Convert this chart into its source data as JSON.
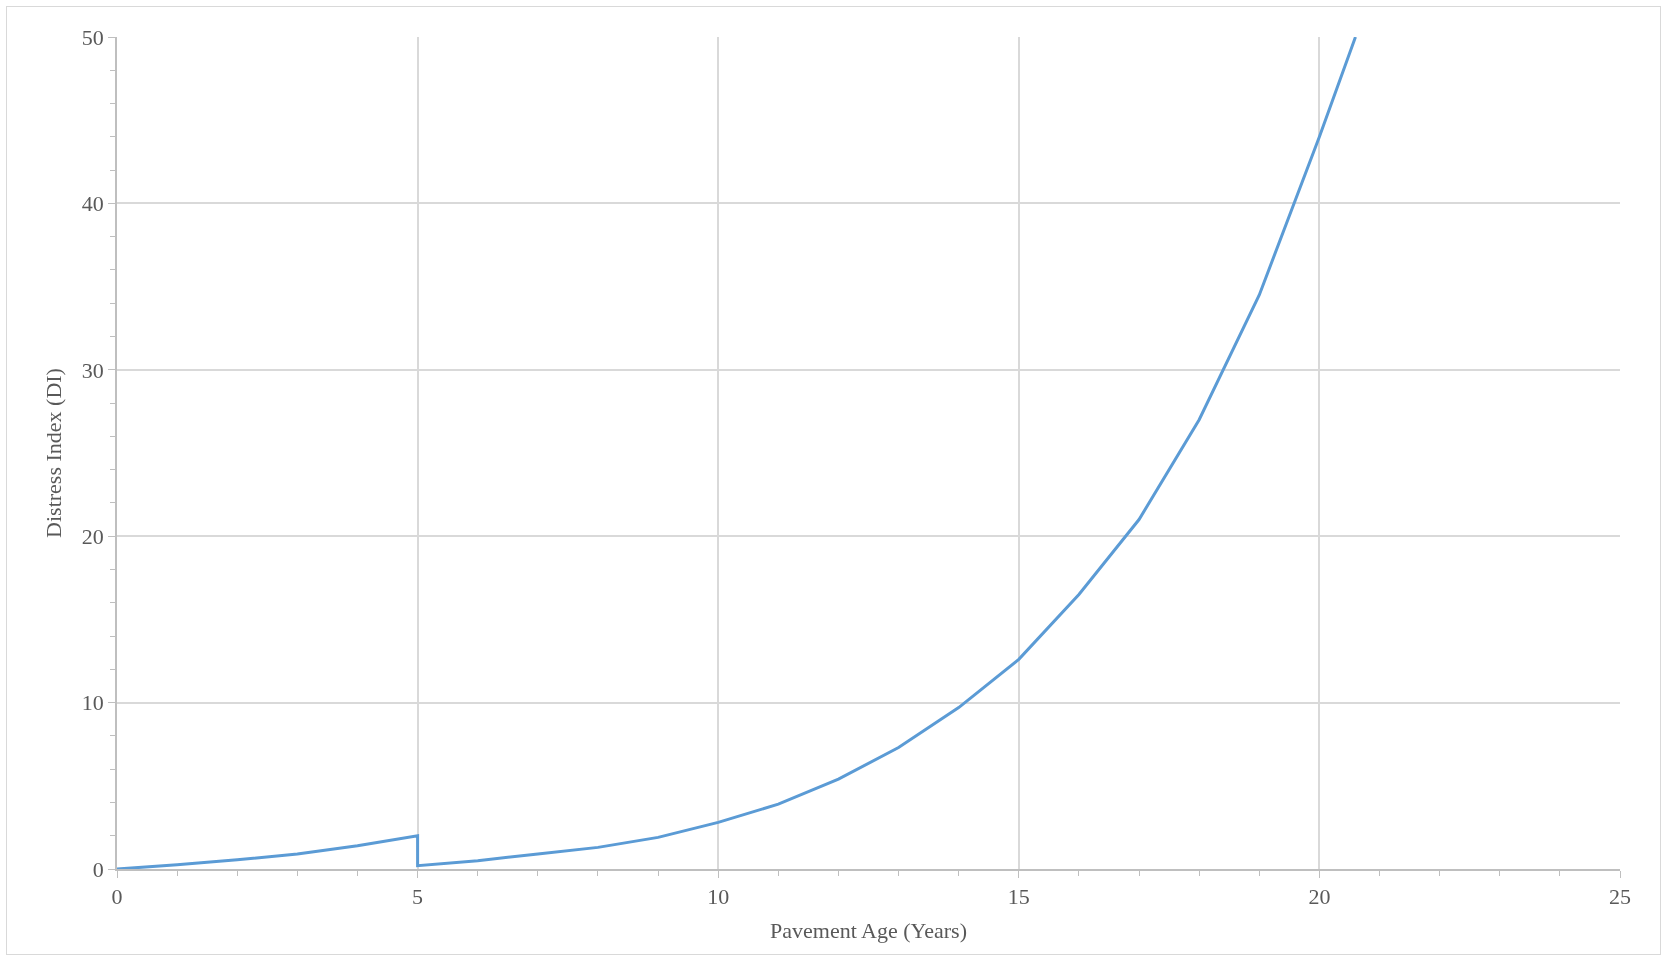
{
  "chart_data": {
    "type": "line",
    "xlabel": "Pavement Age (Years)",
    "ylabel": "Distress Index (DI)",
    "series": [
      {
        "color": "#5b9bd5",
        "x": [
          0,
          1,
          2,
          3,
          4,
          5,
          5,
          6,
          7,
          8,
          9,
          10,
          11,
          12,
          13,
          14,
          15,
          16,
          17,
          18,
          19,
          20,
          20.6
        ],
        "values": [
          0,
          0.25,
          0.55,
          0.9,
          1.4,
          2.0,
          0.2,
          0.5,
          0.9,
          1.3,
          1.9,
          2.8,
          3.9,
          5.4,
          7.3,
          9.7,
          12.6,
          16.5,
          21,
          27,
          34.5,
          44,
          50
        ]
      }
    ],
    "xlim": [
      0,
      25
    ],
    "ylim": [
      0,
      50
    ],
    "xticks": [
      0,
      {
        "value": 1,
        "label": null
      },
      {
        "value": 2,
        "label": null
      },
      {
        "value": 3,
        "label": null
      },
      {
        "value": 4,
        "label": null
      },
      5,
      {
        "value": 6,
        "label": null
      },
      {
        "value": 7,
        "label": null
      },
      {
        "value": 8,
        "label": null
      },
      {
        "value": 9,
        "label": null
      },
      10,
      {
        "value": 11,
        "label": null
      },
      {
        "value": 12,
        "label": null
      },
      {
        "value": 13,
        "label": null
      },
      {
        "value": 14,
        "label": null
      },
      15,
      {
        "value": 16,
        "label": null
      },
      {
        "value": 17,
        "label": null
      },
      {
        "value": 18,
        "label": null
      },
      {
        "value": 19,
        "label": null
      },
      20,
      {
        "value": 21,
        "label": null
      },
      {
        "value": 22,
        "label": null
      },
      {
        "value": 23,
        "label": null
      },
      {
        "value": 24,
        "label": null
      },
      25
    ],
    "yticks": [
      0,
      {
        "value": 2,
        "label": null
      },
      {
        "value": 4,
        "label": null
      },
      {
        "value": 6,
        "label": null
      },
      {
        "value": 8,
        "label": null
      },
      10,
      {
        "value": 12,
        "label": null
      },
      {
        "value": 14,
        "label": null
      },
      {
        "value": 16,
        "label": null
      },
      {
        "value": 18,
        "label": null
      },
      20,
      {
        "value": 22,
        "label": null
      },
      {
        "value": 24,
        "label": null
      },
      {
        "value": 26,
        "label": null
      },
      {
        "value": 28,
        "label": null
      },
      30,
      {
        "value": 32,
        "label": null
      },
      {
        "value": 34,
        "label": null
      },
      {
        "value": 36,
        "label": null
      },
      {
        "value": 38,
        "label": null
      },
      40,
      {
        "value": 42,
        "label": null
      },
      {
        "value": 44,
        "label": null
      },
      {
        "value": 46,
        "label": null
      },
      {
        "value": 48,
        "label": null
      },
      50
    ],
    "grid": true,
    "marker": "none",
    "line_style": "solid"
  }
}
